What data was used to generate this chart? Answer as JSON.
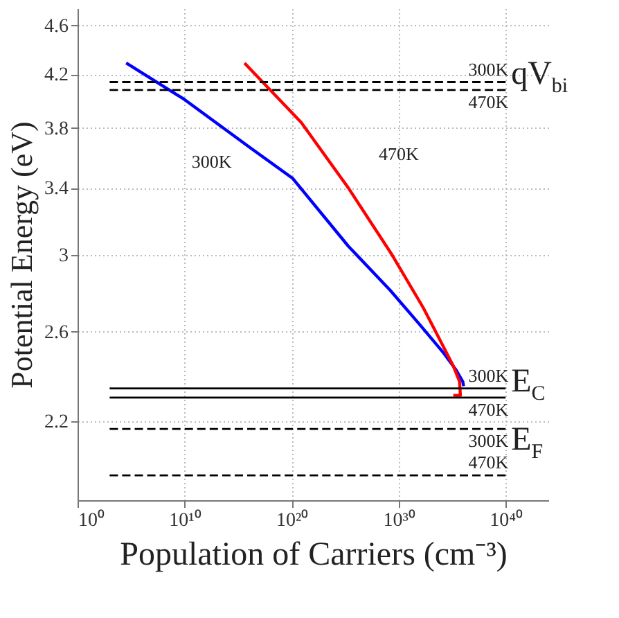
{
  "chart_data": {
    "type": "line",
    "xlabel": "Population of Carriers (cm⁻³)",
    "ylabel": "Potential Energy (eV)",
    "log": "xy",
    "xlim": [
      1,
      1e+44
    ],
    "xticks": [
      {
        "value": 1,
        "label": "10⁰"
      },
      {
        "value": 10000000000.0,
        "label": "10¹⁰"
      },
      {
        "value": 1e+20,
        "label": "10²⁰"
      },
      {
        "value": 1e+30,
        "label": "10³⁰"
      },
      {
        "value": 1e+40,
        "label": "10⁴⁰"
      }
    ],
    "ylim": [
      1.9,
      4.75
    ],
    "yticks": [
      2.2,
      2.6,
      3,
      3.4,
      3.8,
      4.2,
      4.6
    ],
    "grid": true,
    "series": [
      {
        "name": "300K",
        "color": "#0000ff",
        "line_style": "solid",
        "x": [
          35000.0,
          9000000000.0,
          1.6e+16,
          1.3e+20,
          2e+25,
          1.6e+29,
          8e+31,
          1.6e+34,
          2.5e+35,
          1e+36,
          1.2e+36
        ],
        "values": [
          4.29,
          4.01,
          3.66,
          3.46,
          3.05,
          2.81,
          2.64,
          2.5,
          2.42,
          2.37,
          2.35
        ]
      },
      {
        "name": "470K",
        "color": "#ff0000",
        "line_style": "solid",
        "x": [
          4000000000000000.0,
          8e+20,
          2e+25,
          2.5e+29,
          2e+32,
          3e+33,
          1.3e+35,
          5e+35,
          6e+35,
          1.3e+35
        ],
        "values": [
          4.29,
          3.84,
          3.4,
          3.0,
          2.72,
          2.6,
          2.44,
          2.37,
          2.31,
          2.31
        ]
      },
      {
        "name": "300K",
        "color": "#000000",
        "line_style": "dashed",
        "x": [
          1000.0,
          1e+40
        ],
        "values": [
          4.14,
          4.14
        ]
      },
      {
        "name": "470K",
        "color": "#000000",
        "line_style": "dashed",
        "x": [
          1000.0,
          1e+40
        ],
        "values": [
          4.08,
          4.08
        ]
      },
      {
        "name": "300K",
        "color": "#000000",
        "line_style": "solid",
        "x": [
          1000.0,
          1e+40
        ],
        "values": [
          2.34,
          2.34
        ]
      },
      {
        "name": "470K",
        "color": "#000000",
        "line_style": "solid",
        "x": [
          1000.0,
          1e+40
        ],
        "values": [
          2.3,
          2.3
        ]
      },
      {
        "name": "300K",
        "color": "#000000",
        "line_style": "dashed",
        "x": [
          1000.0,
          1e+40
        ],
        "values": [
          2.17,
          2.17
        ]
      },
      {
        "name": "470K",
        "color": "#000000",
        "line_style": "dashed",
        "x": [
          1000.0,
          1e+40
        ],
        "values": [
          1.99,
          1.99
        ]
      }
    ],
    "annotations": [
      "qV$_{bi}$",
      "E$_{C}$",
      "E$_{F}$"
    ]
  }
}
